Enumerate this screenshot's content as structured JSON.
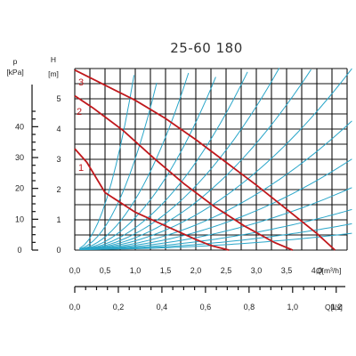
{
  "chart_data": {
    "type": "line",
    "title": "25-60 180",
    "flow_axis": {
      "label": "Q[m³/h]",
      "range": [
        0,
        4.5
      ],
      "ticks": [
        "0,0",
        "0,5",
        "1,0",
        "1,5",
        "2,0",
        "2,5",
        "3,0",
        "3,5",
        "4,0"
      ],
      "tick_values": [
        0,
        0.5,
        1.0,
        1.5,
        2.0,
        2.5,
        3.0,
        3.5,
        4.0
      ]
    },
    "flow_axis_ls": {
      "label": "Q[l/s]",
      "ticks": [
        "0,0",
        "0,2",
        "0,4",
        "0,6",
        "0,8",
        "1,0",
        "1,2"
      ],
      "tick_values": [
        0,
        0.2,
        0.4,
        0.6,
        0.8,
        1.0,
        1.2
      ]
    },
    "head_axis": {
      "label": "H",
      "unit": "[m]",
      "range": [
        0,
        6
      ],
      "ticks": [
        "0",
        "1",
        "2",
        "3",
        "4",
        "5"
      ],
      "tick_values": [
        0,
        1,
        2,
        3,
        4,
        5
      ]
    },
    "pressure_axis": {
      "label": "p",
      "unit": "[kPa]",
      "ticks": [
        "0",
        "10",
        "20",
        "30",
        "40"
      ],
      "tick_values": [
        0,
        10,
        20,
        30,
        40
      ]
    },
    "series": [
      {
        "name": "1",
        "x": [
          0,
          0.2,
          0.5,
          1.0,
          1.5,
          2.0,
          2.25,
          2.55
        ],
        "y": [
          3.35,
          2.9,
          1.9,
          1.25,
          0.8,
          0.35,
          0.15,
          0.0
        ]
      },
      {
        "name": "2",
        "x": [
          0,
          0.3,
          0.8,
          1.3,
          1.8,
          2.3,
          2.8,
          3.3,
          3.6
        ],
        "y": [
          5.1,
          4.7,
          3.95,
          3.05,
          2.2,
          1.45,
          0.8,
          0.25,
          0.0
        ]
      },
      {
        "name": "3",
        "x": [
          0,
          0.5,
          1.0,
          1.5,
          2.0,
          2.5,
          3.0,
          3.5,
          4.0,
          4.3
        ],
        "y": [
          5.95,
          5.45,
          4.95,
          4.35,
          3.65,
          2.9,
          2.15,
          1.35,
          0.55,
          0.0
        ]
      }
    ],
    "system_curves": {
      "coefficients": [
        40,
        20,
        11,
        7,
        4.8,
        3.5,
        2.6,
        1.9,
        1.35,
        0.95,
        0.65,
        0.42,
        0.27,
        0.17
      ],
      "offsets": [
        0.3,
        0.35,
        0.4,
        0.45,
        0.5,
        0.55,
        0.6,
        0.65,
        0.7,
        0.75,
        0.8,
        0.85,
        0.9,
        0.95
      ]
    },
    "grid": true,
    "colors": {
      "grid": "#111111",
      "system": "#2aa6c9",
      "pump": "#c0181c"
    }
  }
}
